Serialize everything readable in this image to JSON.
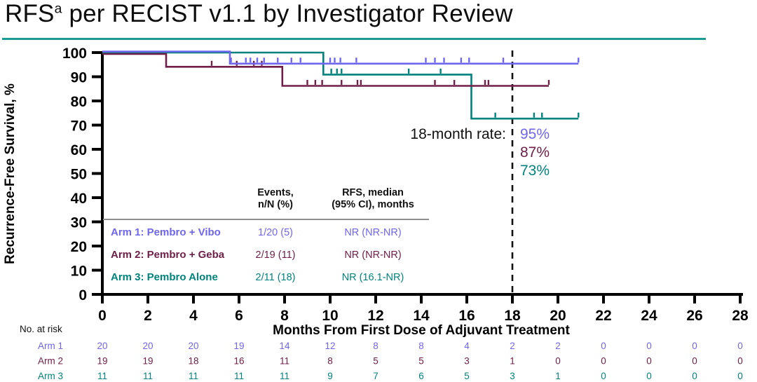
{
  "title": {
    "prefix": "RFS",
    "superscript": "a",
    "rest": " per RECIST v1.1 by Investigator Review"
  },
  "accent_underline_color": "#1b9b93",
  "chart_data": {
    "type": "line",
    "subtype": "kaplan-meier-step",
    "title": "RFS per RECIST v1.1 by Investigator Review",
    "xlabel": "Months From First Dose of Adjuvant Treatment",
    "ylabel": "Recurrence-Free  Survival, %",
    "xlim": [
      0,
      28
    ],
    "ylim": [
      0,
      100
    ],
    "xticks": [
      0,
      2,
      4,
      6,
      8,
      10,
      12,
      14,
      16,
      18,
      20,
      22,
      24,
      26,
      28
    ],
    "yticks": [
      0,
      10,
      20,
      30,
      40,
      50,
      60,
      70,
      80,
      90,
      100
    ],
    "grid": false,
    "reference_line": {
      "x": 18,
      "style": "dashed",
      "color": "#111111"
    },
    "annotation": {
      "label": "18-month rate:",
      "values": [
        {
          "text": "95%",
          "color": "#6f66f0"
        },
        {
          "text": "87%",
          "color": "#702048"
        },
        {
          "text": "73%",
          "color": "#00837c"
        }
      ]
    },
    "series": [
      {
        "name": "Arm 1: Pembro + Vibo",
        "color": "#6f66f0",
        "steps": [
          [
            0,
            100
          ],
          [
            5.6,
            100
          ],
          [
            5.6,
            95
          ],
          [
            20.9,
            95
          ]
        ],
        "censor_marks": [
          [
            5.65,
            95
          ],
          [
            6.3,
            95
          ],
          [
            6.5,
            95
          ],
          [
            6.8,
            95
          ],
          [
            7.1,
            95
          ],
          [
            7.7,
            95
          ],
          [
            8.3,
            95
          ],
          [
            8.7,
            95
          ],
          [
            10.0,
            95
          ],
          [
            10.2,
            95
          ],
          [
            10.45,
            95
          ],
          [
            11.15,
            95
          ],
          [
            14.2,
            95
          ],
          [
            14.6,
            95
          ],
          [
            15.0,
            95
          ],
          [
            15.75,
            95
          ],
          [
            16.1,
            95
          ],
          [
            17.6,
            95
          ],
          [
            20.9,
            95
          ]
        ],
        "rate_18_month": "95%"
      },
      {
        "name": "Arm 2: Pembro + Geba",
        "color": "#702048",
        "steps": [
          [
            0,
            100
          ],
          [
            2.8,
            100
          ],
          [
            2.8,
            94.7
          ],
          [
            7.9,
            94.7
          ],
          [
            7.9,
            86.8
          ],
          [
            19.6,
            86.8
          ]
        ],
        "censor_marks": [
          [
            4.8,
            94.7
          ],
          [
            5.9,
            94.7
          ],
          [
            6.65,
            94.7
          ],
          [
            7.0,
            94.7
          ],
          [
            9.0,
            86.8
          ],
          [
            9.35,
            86.8
          ],
          [
            9.65,
            86.8
          ],
          [
            10.5,
            86.8
          ],
          [
            11.2,
            86.8
          ],
          [
            11.35,
            86.8
          ],
          [
            14.6,
            86.8
          ],
          [
            15.45,
            86.8
          ],
          [
            16.8,
            86.8
          ],
          [
            16.95,
            86.8
          ],
          [
            19.6,
            86.8
          ]
        ],
        "rate_18_month": "87%"
      },
      {
        "name": "Arm 3: Pembro Alone",
        "color": "#00837c",
        "steps": [
          [
            0,
            100
          ],
          [
            9.7,
            100
          ],
          [
            9.7,
            90.9
          ],
          [
            16.2,
            90.9
          ],
          [
            16.2,
            72.7
          ],
          [
            20.9,
            72.7
          ]
        ],
        "censor_marks": [
          [
            10.05,
            90.9
          ],
          [
            10.3,
            90.9
          ],
          [
            10.5,
            90.9
          ],
          [
            13.45,
            90.9
          ],
          [
            14.85,
            90.9
          ],
          [
            17.25,
            72.7
          ],
          [
            18.95,
            72.7
          ],
          [
            19.3,
            72.7
          ],
          [
            20.9,
            72.7
          ]
        ],
        "rate_18_month": "73%"
      }
    ],
    "summary_table": {
      "col_headers": [
        [
          "Events,",
          "n/N (%)"
        ],
        [
          "RFS, median",
          "(95% CI), months"
        ]
      ],
      "rows": [
        {
          "label": "Arm 1: Pembro + Vibo",
          "events": "1/20 (5)",
          "median": "NR (NR-NR)",
          "color": "#6f66f0"
        },
        {
          "label": "Arm 2: Pembro + Geba",
          "events": "2/19 (11)",
          "median": "NR (NR-NR)",
          "color": "#702048"
        },
        {
          "label": "Arm 3: Pembro Alone",
          "events": "2/11 (18)",
          "median": "NR (16.1-NR)",
          "color": "#00837c"
        }
      ]
    },
    "risk_table": {
      "label": "No. at risk",
      "timepoints": [
        0,
        2,
        4,
        6,
        8,
        10,
        12,
        14,
        16,
        18,
        20,
        22,
        24,
        26,
        28
      ],
      "rows": [
        {
          "name": "Arm 1",
          "color": "#6f66f0",
          "values": [
            20,
            20,
            20,
            19,
            14,
            12,
            8,
            8,
            4,
            2,
            2,
            0,
            0,
            0,
            0
          ]
        },
        {
          "name": "Arm 2",
          "color": "#702048",
          "values": [
            19,
            19,
            18,
            16,
            11,
            8,
            5,
            5,
            3,
            1,
            0,
            0,
            0,
            0,
            0
          ]
        },
        {
          "name": "Arm 3",
          "color": "#00837c",
          "values": [
            11,
            11,
            11,
            11,
            11,
            9,
            7,
            6,
            5,
            3,
            1,
            0,
            0,
            0,
            0
          ]
        }
      ]
    }
  }
}
